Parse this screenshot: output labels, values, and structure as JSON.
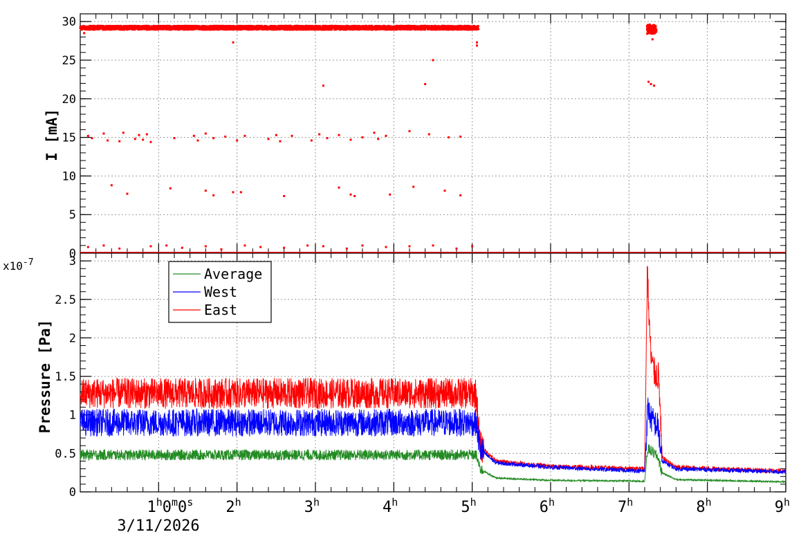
{
  "chart_data": [
    {
      "type": "scatter",
      "panel": "top",
      "ylabel": "I [mA]",
      "ylim": [
        0,
        31
      ],
      "yticks": [
        0,
        5,
        10,
        15,
        20,
        25,
        30
      ],
      "xlim_hours": [
        0,
        9
      ],
      "grid": true,
      "series": [
        {
          "color": "#ff0000",
          "segments": [
            {
              "x_start": 0.0,
              "x_end": 5.08,
              "y_level": 29.2,
              "y_spread": 0.25
            },
            {
              "x_start": 7.23,
              "x_end": 7.35,
              "y_level": 29.0,
              "y_spread": 0.6
            },
            {
              "x_start": 0.0,
              "x_end": 9.0,
              "y_level": 0.0,
              "y_spread": 0.0
            }
          ],
          "sparse_points": [
            [
              0.1,
              15.2
            ],
            [
              0.15,
              14.9
            ],
            [
              0.3,
              15.5
            ],
            [
              0.35,
              14.6
            ],
            [
              0.5,
              14.5
            ],
            [
              0.55,
              15.6
            ],
            [
              0.7,
              14.8
            ],
            [
              0.75,
              15.3
            ],
            [
              0.8,
              14.7
            ],
            [
              0.85,
              15.4
            ],
            [
              0.9,
              14.4
            ],
            [
              1.2,
              14.9
            ],
            [
              1.45,
              15.2
            ],
            [
              1.5,
              14.6
            ],
            [
              1.6,
              15.5
            ],
            [
              1.7,
              14.9
            ],
            [
              1.85,
              15.1
            ],
            [
              2.0,
              14.6
            ],
            [
              2.1,
              15.2
            ],
            [
              2.4,
              14.8
            ],
            [
              2.5,
              15.3
            ],
            [
              2.55,
              14.5
            ],
            [
              2.7,
              15.2
            ],
            [
              2.95,
              14.6
            ],
            [
              3.05,
              15.4
            ],
            [
              3.15,
              14.9
            ],
            [
              3.3,
              15.3
            ],
            [
              3.45,
              14.7
            ],
            [
              3.6,
              15.0
            ],
            [
              3.75,
              15.6
            ],
            [
              3.8,
              14.8
            ],
            [
              3.9,
              15.2
            ],
            [
              4.2,
              15.8
            ],
            [
              4.45,
              15.4
            ],
            [
              4.7,
              15.0
            ],
            [
              4.85,
              15.1
            ],
            [
              0.4,
              8.8
            ],
            [
              0.6,
              7.7
            ],
            [
              1.15,
              8.4
            ],
            [
              1.6,
              8.1
            ],
            [
              1.7,
              7.5
            ],
            [
              1.95,
              7.9
            ],
            [
              2.05,
              7.9
            ],
            [
              2.6,
              7.4
            ],
            [
              3.3,
              8.5
            ],
            [
              3.45,
              7.6
            ],
            [
              3.5,
              7.4
            ],
            [
              3.95,
              7.6
            ],
            [
              4.25,
              8.6
            ],
            [
              4.65,
              8.1
            ],
            [
              4.85,
              7.5
            ],
            [
              3.1,
              21.7
            ],
            [
              4.4,
              21.9
            ],
            [
              4.5,
              25.0
            ],
            [
              1.95,
              27.3
            ],
            [
              0.05,
              28.5
            ],
            [
              5.06,
              26.9
            ],
            [
              5.06,
              27.3
            ],
            [
              7.25,
              22.2
            ],
            [
              7.28,
              21.9
            ],
            [
              7.32,
              21.7
            ],
            [
              7.3,
              27.7
            ],
            [
              0.1,
              0.8
            ],
            [
              0.3,
              1.0
            ],
            [
              0.5,
              0.6
            ],
            [
              0.9,
              0.9
            ],
            [
              1.1,
              1.0
            ],
            [
              1.3,
              0.7
            ],
            [
              1.6,
              0.9
            ],
            [
              1.8,
              0.5
            ],
            [
              2.1,
              1.0
            ],
            [
              2.3,
              0.8
            ],
            [
              2.6,
              0.7
            ],
            [
              2.9,
              1.0
            ],
            [
              3.1,
              0.9
            ],
            [
              3.4,
              0.6
            ],
            [
              3.6,
              1.0
            ],
            [
              3.9,
              0.8
            ],
            [
              4.2,
              0.9
            ],
            [
              4.5,
              1.0
            ],
            [
              4.8,
              0.6
            ],
            [
              5.0,
              0.9
            ]
          ]
        }
      ]
    },
    {
      "type": "line",
      "panel": "bottom",
      "ylabel": "Pressure [Pa]",
      "y_exponent_label": "x10",
      "y_exponent_power": "-7",
      "ylim": [
        0,
        3.1
      ],
      "yticks": [
        0,
        0.5,
        1,
        1.5,
        2,
        2.5,
        3
      ],
      "xlim_hours": [
        0,
        9
      ],
      "xtick_labels": [
        {
          "hour": 1,
          "main": "1",
          "sup1": "h",
          "mid": "0",
          "sup2": "m",
          "mid2": "0",
          "sup3": "s"
        },
        {
          "hour": 2,
          "main": "2",
          "sup1": "h"
        },
        {
          "hour": 3,
          "main": "3",
          "sup1": "h"
        },
        {
          "hour": 4,
          "main": "4",
          "sup1": "h"
        },
        {
          "hour": 5,
          "main": "5",
          "sup1": "h"
        },
        {
          "hour": 6,
          "main": "6",
          "sup1": "h"
        },
        {
          "hour": 7,
          "main": "7",
          "sup1": "h"
        },
        {
          "hour": 8,
          "main": "8",
          "sup1": "h"
        },
        {
          "hour": 9,
          "main": "9",
          "sup1": "h"
        }
      ],
      "date_label": "3/11/2026",
      "grid": true,
      "legend_position": "top-left",
      "series": [
        {
          "name": "Average",
          "color": "#228b22",
          "key_points": [
            [
              0,
              0.48
            ],
            [
              5.05,
              0.48
            ],
            [
              5.1,
              0.3
            ],
            [
              5.3,
              0.18
            ],
            [
              6.0,
              0.15
            ],
            [
              7.2,
              0.14
            ],
            [
              7.24,
              0.56
            ],
            [
              7.3,
              0.52
            ],
            [
              7.37,
              0.45
            ],
            [
              7.42,
              0.25
            ],
            [
              7.6,
              0.16
            ],
            [
              9.0,
              0.13
            ]
          ],
          "noise": 0.07
        },
        {
          "name": "West",
          "color": "#0000ff",
          "key_points": [
            [
              0,
              0.9
            ],
            [
              5.05,
              0.9
            ],
            [
              5.1,
              0.55
            ],
            [
              5.3,
              0.38
            ],
            [
              6.0,
              0.32
            ],
            [
              7.2,
              0.27
            ],
            [
              7.24,
              1.1
            ],
            [
              7.28,
              0.95
            ],
            [
              7.37,
              0.85
            ],
            [
              7.42,
              0.4
            ],
            [
              7.6,
              0.3
            ],
            [
              9.0,
              0.26
            ]
          ],
          "noise": 0.18
        },
        {
          "name": "East",
          "color": "#ff0000",
          "key_points": [
            [
              0,
              1.28
            ],
            [
              5.05,
              1.28
            ],
            [
              5.1,
              0.6
            ],
            [
              5.3,
              0.4
            ],
            [
              6.0,
              0.33
            ],
            [
              7.2,
              0.3
            ],
            [
              7.235,
              2.95
            ],
            [
              7.25,
              2.4
            ],
            [
              7.28,
              1.75
            ],
            [
              7.32,
              1.55
            ],
            [
              7.38,
              1.5
            ],
            [
              7.42,
              0.45
            ],
            [
              7.6,
              0.32
            ],
            [
              9.0,
              0.27
            ]
          ],
          "noise": 0.2
        }
      ]
    }
  ]
}
